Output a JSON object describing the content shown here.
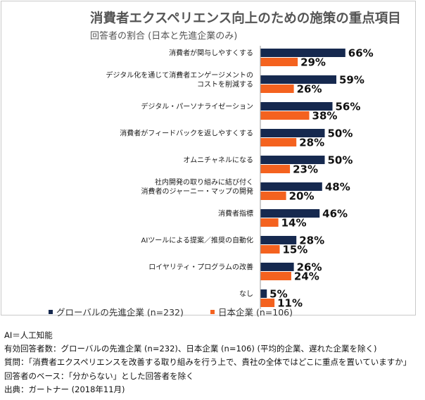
{
  "chart_data": {
    "type": "bar",
    "orientation": "horizontal",
    "title": "消費者エクスペリエンス向上のための施策の重点項目",
    "subtitle": "回答者の割合 (日本と先進企業のみ)",
    "categories": [
      [
        "消費者が関与しやすくする"
      ],
      [
        "デジタル化を通じて消費者エンゲージメントの",
        "コストを削減する"
      ],
      [
        "デジタル・パーソナライゼーション"
      ],
      [
        "消費者がフィードバックを返しやすくする"
      ],
      [
        "オムニチャネルになる"
      ],
      [
        "社内開発の取り組みに結び付く",
        "消費者のジャーニー・マップの開発"
      ],
      [
        "消費者指標"
      ],
      [
        "AIツールによる提案／推奨の自動化"
      ],
      [
        "ロイヤリティ・プログラムの改善"
      ],
      [
        "なし"
      ]
    ],
    "series": [
      {
        "name": "グローバルの先進企業 (n=232)",
        "color": "#16294f",
        "values": [
          66,
          59,
          56,
          50,
          50,
          48,
          46,
          28,
          26,
          5
        ]
      },
      {
        "name": "日本企業 (n=106)",
        "color": "#f4621f",
        "values": [
          29,
          26,
          38,
          28,
          23,
          20,
          14,
          15,
          24,
          11
        ]
      }
    ],
    "value_suffix": "%",
    "xlim": [
      0,
      100
    ],
    "legend_position": "bottom-left"
  },
  "notes": [
    "AI＝人工知能",
    "有効回答者数：グローバルの先進企業 (n=232)、日本企業 (n=106) (平均的企業、遅れた企業を除く)",
    "質問：「消費者エクスペリエンスを改善する取り組みを行う上で、貴社の全体ではどこに重点を置いていますか」",
    "回答者のベース：「分からない」とした回答者を除く",
    "出典：ガートナー (2018年11月)"
  ]
}
